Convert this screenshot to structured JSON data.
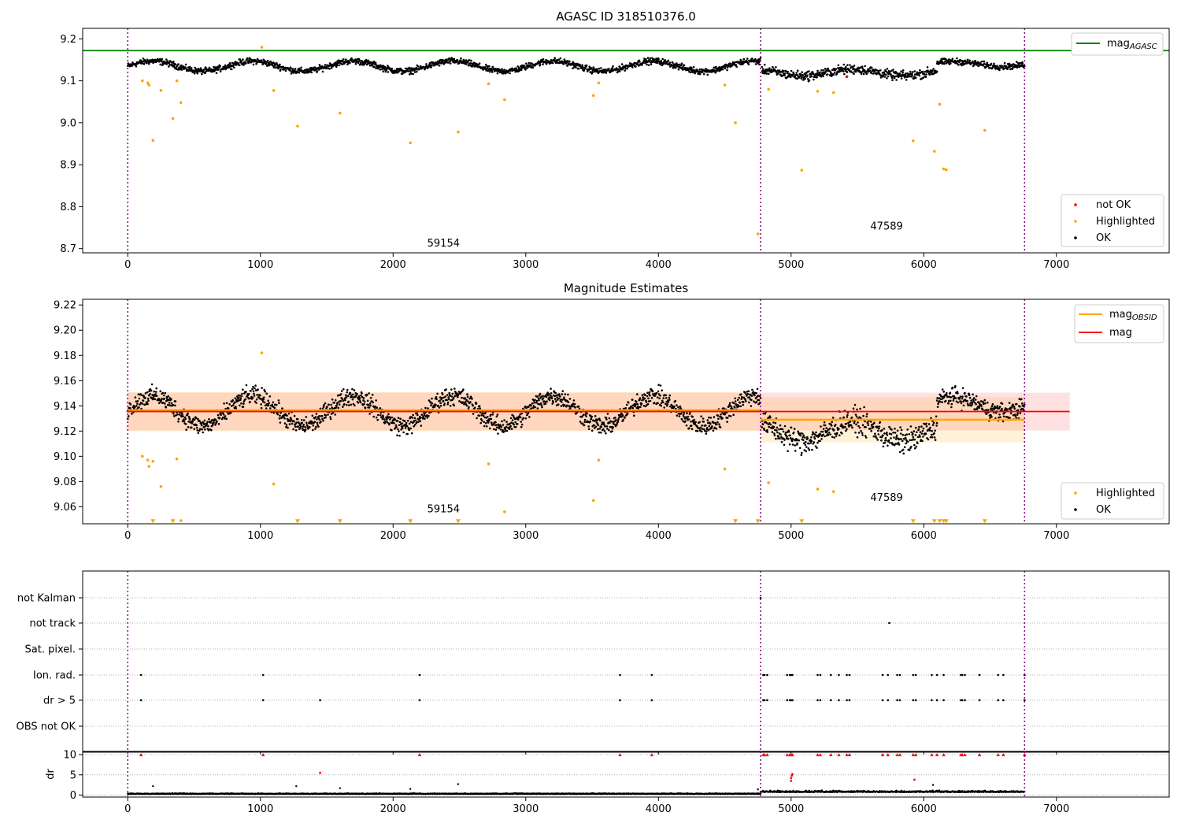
{
  "chart_data": [
    {
      "type": "scatter",
      "title": "AGASC ID 318510376.0",
      "xlim": [
        -340,
        7850
      ],
      "ylim": [
        8.69,
        9.225
      ],
      "x_ticks": [
        0,
        1000,
        2000,
        3000,
        4000,
        5000,
        6000,
        7000
      ],
      "y_ticks": [
        8.7,
        8.8,
        8.9,
        9.0,
        9.1,
        9.2
      ],
      "y_tick_labels": [
        "8.7",
        "8.8",
        "8.9",
        "9.0",
        "9.1",
        "9.2"
      ],
      "vlines": [
        0,
        4770,
        6760
      ],
      "hlines": [
        {
          "name": "mag_AGASC",
          "y": 9.172,
          "color": "#008000"
        }
      ],
      "obsid_labels": [
        {
          "text": "59154",
          "x": 2380,
          "y": 8.705
        },
        {
          "text": "47589",
          "x": 5720,
          "y": 8.745
        }
      ],
      "legend_lines": [
        {
          "label": "mag",
          "sub": "AGASC",
          "color": "#008000"
        }
      ],
      "legend_points": [
        {
          "label": "not OK",
          "color": "#ff0000"
        },
        {
          "label": "Highlighted",
          "color": "#ffa500"
        },
        {
          "label": "OK",
          "color": "#000000"
        }
      ],
      "series": [
        {
          "name": "Highlighted",
          "color": "#ffa500",
          "x": [
            110,
            150,
            160,
            190,
            250,
            340,
            370,
            400,
            1010,
            1100,
            1280,
            1600,
            2130,
            2490,
            2720,
            2840,
            3510,
            3550,
            4500,
            4580,
            4750,
            4830,
            5080,
            5200,
            5320,
            5920,
            6080,
            6120,
            6150,
            6170,
            6460
          ],
          "y": [
            9.1,
            9.095,
            9.09,
            8.958,
            9.077,
            9.01,
            9.1,
            9.048,
            9.18,
            9.077,
            8.992,
            9.023,
            8.952,
            8.978,
            9.093,
            9.055,
            9.065,
            9.095,
            9.09,
            9.0,
            8.735,
            9.08,
            8.887,
            9.075,
            9.072,
            8.957,
            8.932,
            9.044,
            8.89,
            8.888,
            8.982
          ]
        },
        {
          "name": "not OK",
          "color": "#ff0000",
          "x": [
            5420
          ],
          "y": [
            9.11
          ]
        }
      ],
      "ok_band": {
        "name": "OK",
        "color": "#000000",
        "segments": [
          {
            "x0": 0,
            "x1": 4770,
            "center": 9.135,
            "amp": 0.012,
            "noise": 0.012
          },
          {
            "x0": 4780,
            "x1": 6100,
            "center": 9.12,
            "amp": 0.008,
            "noise": 0.018
          },
          {
            "x0": 6100,
            "x1": 6760,
            "center": 9.14,
            "amp": 0.006,
            "noise": 0.012
          }
        ]
      }
    },
    {
      "type": "scatter",
      "title": "Magnitude Estimates",
      "xlim": [
        -340,
        7850
      ],
      "ylim": [
        9.0465,
        9.2245
      ],
      "x_ticks": [
        0,
        1000,
        2000,
        3000,
        4000,
        5000,
        6000,
        7000
      ],
      "y_ticks": [
        9.06,
        9.08,
        9.1,
        9.12,
        9.14,
        9.16,
        9.18,
        9.2,
        9.22
      ],
      "y_tick_labels": [
        "9.06",
        "9.08",
        "9.10",
        "9.12",
        "9.14",
        "9.16",
        "9.18",
        "9.20",
        "9.22"
      ],
      "vlines": [
        0,
        4770,
        6760
      ],
      "obsid_labels": [
        {
          "text": "59154",
          "x": 2380,
          "y": 9.0555
        },
        {
          "text": "47589",
          "x": 5720,
          "y": 9.0645
        }
      ],
      "legend_lines": [
        {
          "label": "mag",
          "sub": "OBSID",
          "color": "#ffa500"
        },
        {
          "label": "mag",
          "sub": "",
          "color": "#ff0000"
        }
      ],
      "legend_points": [
        {
          "label": "Highlighted",
          "color": "#ffa500"
        },
        {
          "label": "OK",
          "color": "#000000"
        }
      ],
      "mag_line": {
        "y": 9.1355,
        "x0": -10,
        "x1": 7100,
        "band": [
          9.1205,
          9.1505
        ],
        "color": "#ff0000"
      },
      "obsid_lines": [
        {
          "x0": 0,
          "x1": 4770,
          "y": 9.1365,
          "band": [
            9.12,
            9.151
          ]
        },
        {
          "x0": 4770,
          "x1": 6760,
          "y": 9.129,
          "band": [
            9.111,
            9.147
          ]
        }
      ],
      "series": [
        {
          "name": "Highlighted",
          "color": "#ffa500",
          "x": [
            110,
            150,
            160,
            190,
            250,
            340,
            370,
            400,
            1010,
            1100,
            1280,
            1600,
            2130,
            2490,
            2720,
            2840,
            3510,
            3550,
            4500,
            4580,
            4830,
            5200,
            5320
          ],
          "y": [
            9.1,
            9.097,
            9.092,
            9.096,
            9.076,
            9.049,
            9.098,
            9.049,
            9.182,
            9.078,
            9.049,
            9.049,
            9.049,
            9.049,
            9.094,
            9.056,
            9.065,
            9.097,
            9.09,
            9.049,
            9.079,
            9.074,
            9.072
          ]
        },
        {
          "name": "below-range",
          "color": "#ffa500",
          "x": [
            190,
            340,
            1280,
            1600,
            2130,
            2490,
            4580,
            4750,
            5080,
            5920,
            6080,
            6120,
            6150,
            6170,
            6460
          ],
          "y": [
            9.0482,
            9.0482,
            9.0482,
            9.0482,
            9.0482,
            9.0482,
            9.0482,
            9.0482,
            9.0482,
            9.0482,
            9.0482,
            9.0482,
            9.0482,
            9.0482,
            9.0482
          ]
        }
      ],
      "ok_band": {
        "name": "OK",
        "color": "#000000",
        "segments": [
          {
            "x0": 0,
            "x1": 4770,
            "center": 9.136,
            "amp": 0.012,
            "noise": 0.012
          },
          {
            "x0": 4780,
            "x1": 6100,
            "center": 9.12,
            "amp": 0.008,
            "noise": 0.016
          },
          {
            "x0": 6100,
            "x1": 6760,
            "center": 9.141,
            "amp": 0.006,
            "noise": 0.012
          }
        ]
      }
    },
    {
      "type": "scatter",
      "title": "",
      "xlim": [
        -340,
        7850
      ],
      "flag_rows": [
        "not Kalman",
        "not track",
        "Sat. pixel.",
        "Ion. rad.",
        "dr > 5",
        "OBS not OK"
      ],
      "vlines": [
        0,
        4770,
        6760
      ],
      "x_ticks": [
        0,
        1000,
        2000,
        3000,
        4000,
        5000,
        6000,
        7000
      ],
      "flag_points": {
        "not Kalman": [
          4770
        ],
        "not track": [
          5740
        ],
        "Sat. pixel.": [],
        "Ion. rad.": [
          100,
          1020,
          2200,
          3710,
          3950,
          4790,
          4800,
          4820,
          4970,
          4990,
          5000,
          5010,
          5200,
          5220,
          5300,
          5360,
          5420,
          5440,
          5690,
          5730,
          5800,
          5820,
          5920,
          5940,
          6060,
          6100,
          6150,
          6280,
          6290,
          6310,
          6420,
          6560,
          6600,
          6760
        ],
        "dr > 5": [
          100,
          1020,
          1450,
          2200,
          3710,
          3950,
          4790,
          4800,
          4820,
          4970,
          4990,
          5000,
          5010,
          5200,
          5220,
          5300,
          5360,
          5420,
          5440,
          5690,
          5730,
          5800,
          5820,
          5920,
          5940,
          6060,
          6100,
          6150,
          6280,
          6290,
          6310,
          6420,
          6560,
          6600,
          6760
        ],
        "OBS not OK": []
      }
    },
    {
      "type": "scatter",
      "title": "",
      "xlim": [
        -340,
        7850
      ],
      "ylim": [
        -0.5,
        10.8
      ],
      "ylabel": "dr",
      "x_ticks": [
        0,
        1000,
        2000,
        3000,
        4000,
        5000,
        6000,
        7000
      ],
      "x_tick_labels": [
        "0",
        "1000",
        "2000",
        "3000",
        "4000",
        "5000",
        "6000",
        "7000"
      ],
      "y_ticks": [
        0,
        5,
        10
      ],
      "y_tick_labels": [
        "0",
        "5",
        "10"
      ],
      "vlines": [
        0,
        4770,
        6760
      ],
      "dr_clipped": {
        "color": "#ff0000",
        "x": [
          100,
          1020,
          2200,
          3710,
          3950,
          4790,
          4800,
          4820,
          4970,
          4990,
          5000,
          5010,
          5200,
          5220,
          5300,
          5360,
          5420,
          5440,
          5690,
          5730,
          5800,
          5820,
          5920,
          5940,
          6060,
          6100,
          6150,
          6280,
          6290,
          6310,
          6420,
          6560,
          6600,
          6760
        ],
        "y": 10
      },
      "dr_red_points": {
        "color": "#ff0000",
        "x": [
          1450,
          5000,
          5000,
          5005,
          5010,
          5930
        ],
        "y": [
          5.5,
          3.5,
          4.2,
          4.8,
          5.2,
          3.8
        ]
      },
      "dr_black_points": {
        "color": "#000000",
        "x": [
          190,
          1270,
          1600,
          2130,
          2490,
          6070,
          4750
        ],
        "y": [
          2.2,
          2.2,
          1.7,
          1.5,
          2.7,
          2.5,
          1.4
        ]
      },
      "dr_base": {
        "color": "#000000",
        "segments": [
          {
            "x0": 0,
            "x1": 4770,
            "center": 0.25,
            "noise": 0.25
          },
          {
            "x0": 4770,
            "x1": 6760,
            "center": 0.7,
            "noise": 0.5
          }
        ]
      }
    }
  ]
}
